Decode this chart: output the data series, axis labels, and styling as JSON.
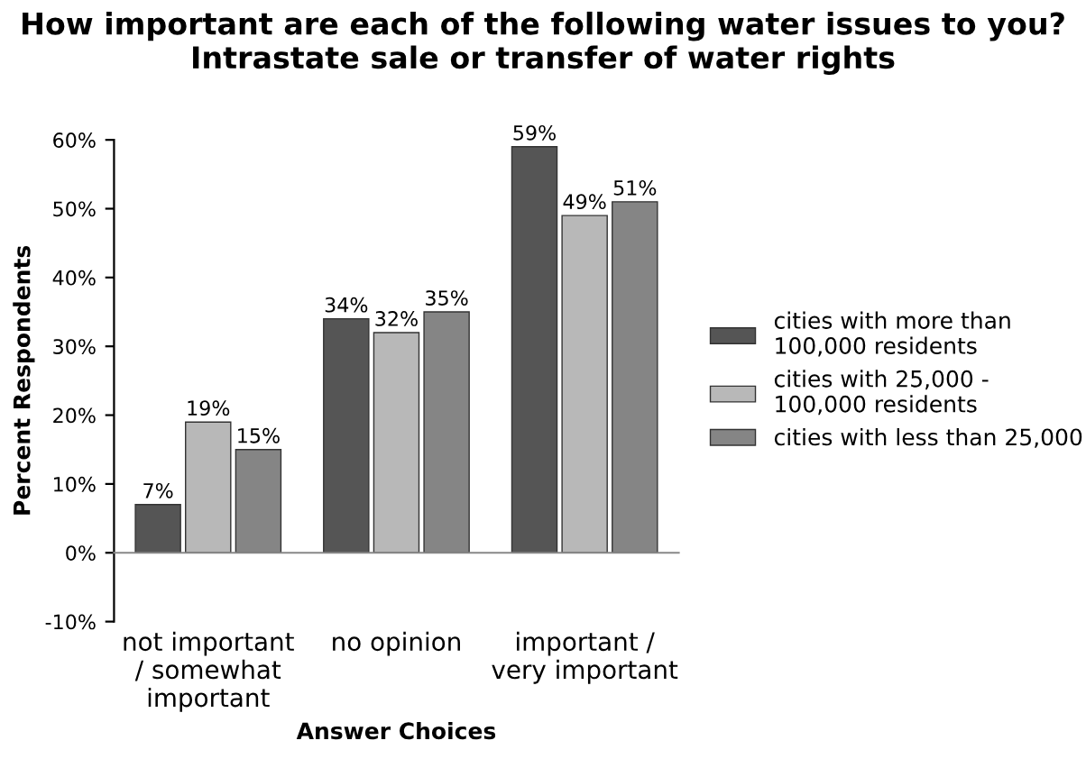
{
  "chart_data": {
    "type": "bar",
    "title": "How important are each of the following water issues to you? Intrastate sale or transfer of water rights",
    "xlabel": "Answer Choices",
    "ylabel": "Percent Respondents",
    "categories": [
      "not important\n/ somewhat\nimportant",
      "no opinion",
      "important /\nvery important"
    ],
    "series": [
      {
        "name": "cities with more than\n100,000 residents",
        "color": "#555555",
        "values": [
          7,
          34,
          59
        ],
        "value_labels": [
          "7%",
          "34%",
          "59%"
        ]
      },
      {
        "name": "cities with 25,000 -\n100,000 residents",
        "color": "#b8b8b8",
        "values": [
          19,
          32,
          49
        ],
        "value_labels": [
          "19%",
          "32%",
          "49%"
        ]
      },
      {
        "name": "cities with less than 25,000",
        "color": "#858585",
        "values": [
          15,
          35,
          51
        ],
        "value_labels": [
          "15%",
          "35%",
          "51%"
        ]
      }
    ],
    "ylim": [
      -10,
      60
    ],
    "yticks": [
      {
        "value": -10,
        "label": "-10%"
      },
      {
        "value": 0,
        "label": "0%"
      },
      {
        "value": 10,
        "label": "10%"
      },
      {
        "value": 20,
        "label": "20%"
      },
      {
        "value": 30,
        "label": "30%"
      },
      {
        "value": 40,
        "label": "40%"
      },
      {
        "value": 50,
        "label": "50%"
      },
      {
        "value": 60,
        "label": "60%"
      }
    ],
    "legend": "right"
  }
}
